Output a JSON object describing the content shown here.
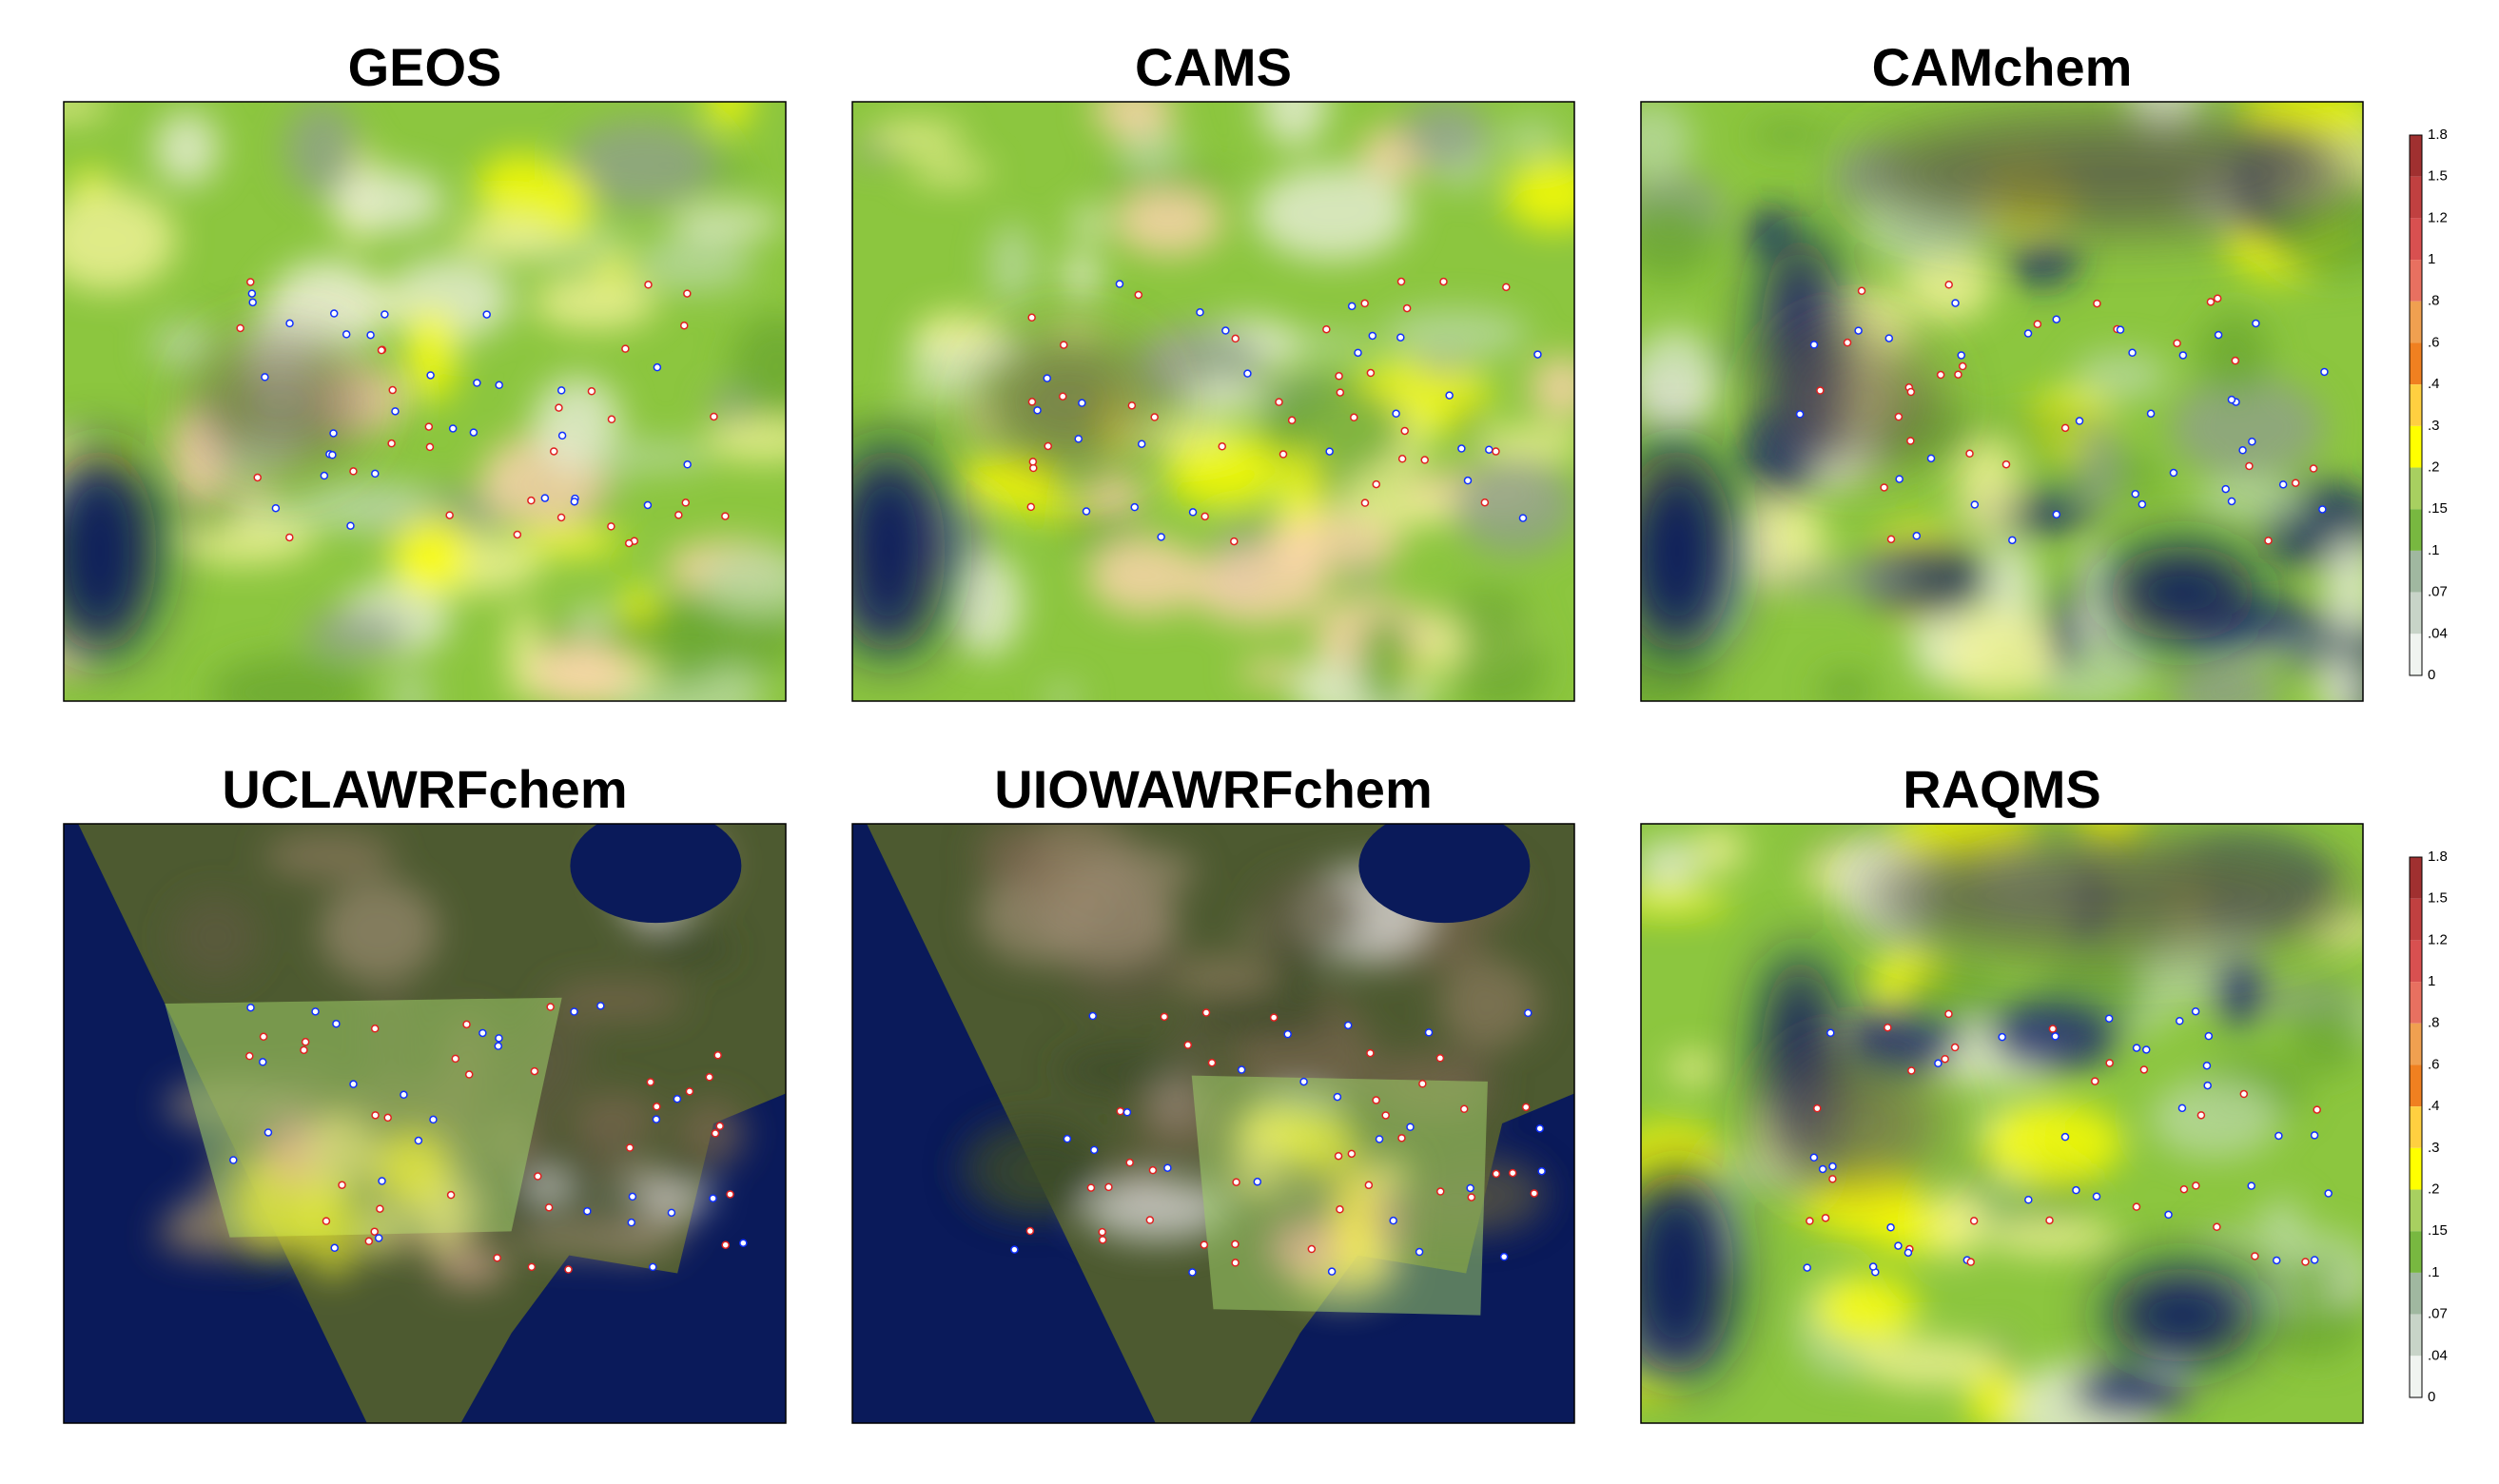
{
  "panels": [
    {
      "title": "GEOS"
    },
    {
      "title": "CAMS"
    },
    {
      "title": "CAMchem"
    },
    {
      "title": "UCLAWRFchem"
    },
    {
      "title": "UIOWAWRFchem"
    },
    {
      "title": "RAQMS"
    }
  ],
  "colorbars": [
    {
      "labels": [
        "1.8",
        "1.5",
        "1.2",
        "1",
        ".8",
        ".6",
        ".4",
        ".3",
        ".2",
        ".15",
        ".1",
        ".07",
        ".04",
        "0"
      ]
    },
    {
      "labels": [
        "1.8",
        "1.5",
        "1.2",
        "1",
        ".8",
        ".6",
        ".4",
        ".3",
        ".2",
        ".15",
        ".1",
        ".07",
        ".04",
        "0"
      ]
    }
  ]
}
